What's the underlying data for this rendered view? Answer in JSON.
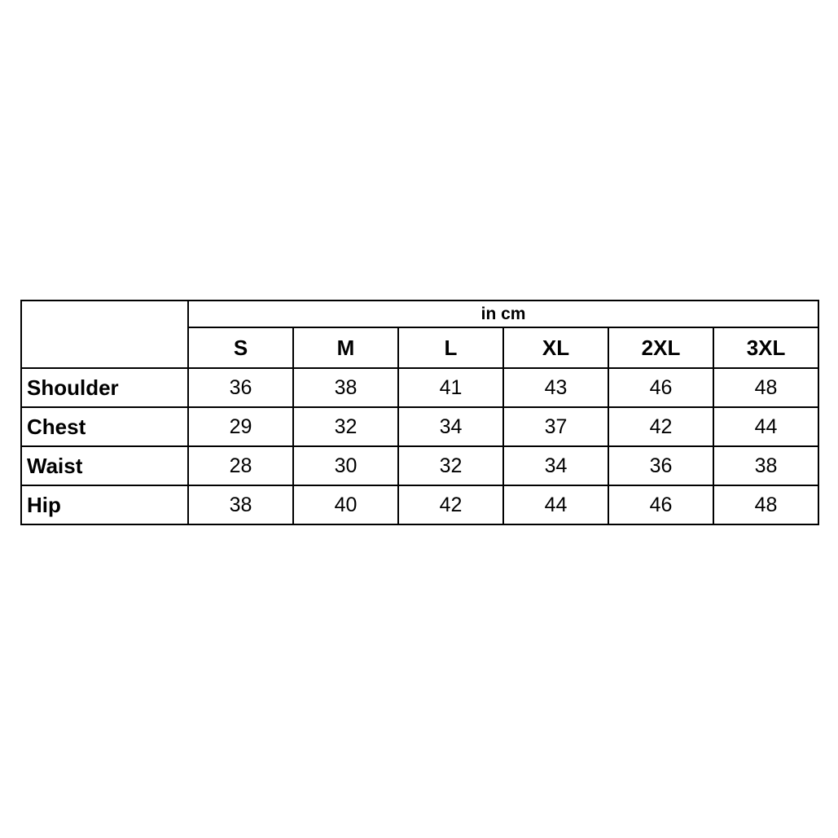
{
  "chart_data": {
    "type": "table",
    "title": "in cm",
    "columns": [
      "",
      "S",
      "M",
      "L",
      "XL",
      "2XL",
      "3XL"
    ],
    "rows": [
      [
        "Shoulder",
        36,
        38,
        41,
        43,
        46,
        48
      ],
      [
        "Chest",
        29,
        32,
        34,
        37,
        42,
        44
      ],
      [
        "Waist",
        28,
        30,
        32,
        34,
        36,
        38
      ],
      [
        "Hip",
        38,
        40,
        42,
        44,
        46,
        48
      ]
    ]
  },
  "colors": {
    "background": "#ffffff",
    "border": "#000000",
    "text": "#000000"
  }
}
